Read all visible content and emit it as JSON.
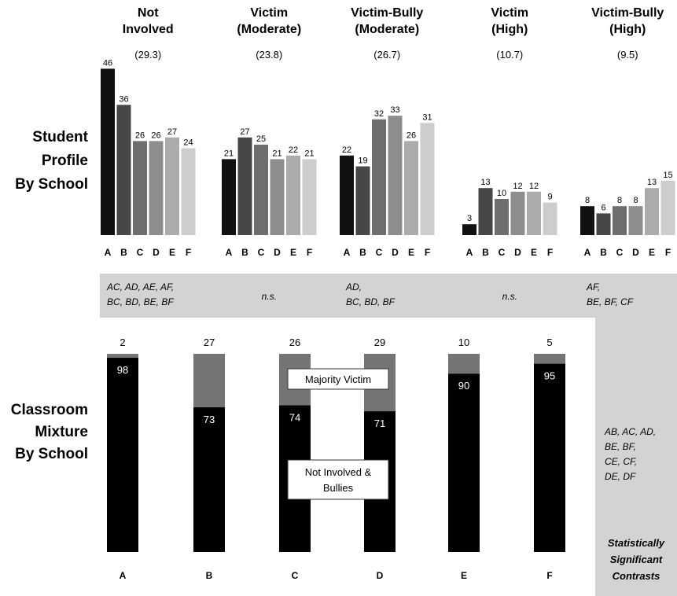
{
  "row_labels": {
    "student_profile": [
      "Student",
      "Profile",
      "By School"
    ],
    "classroom_mixture": [
      "Classroom",
      "Mixture",
      "By School"
    ]
  },
  "colors": {
    "schools": [
      "#111111",
      "#474747",
      "#6e6e6e",
      "#8d8d8d",
      "#ababab",
      "#cdcdcd"
    ],
    "panel": "#d3d3d3",
    "majority_victim": "#747474",
    "not_involved": "#000000"
  },
  "contrasts": {
    "profile": [
      [
        "AC, AD, AE, AF,",
        "BC, BD, BE, BF"
      ],
      [
        "n.s."
      ],
      [
        "AD,",
        "BC, BD, BF"
      ],
      [
        "n.s."
      ],
      [
        "AF,",
        "BE, BF, CF"
      ]
    ],
    "mixture": [
      "AB, AC, AD,",
      "BE, BF,",
      "CE, CF,",
      "DE, DF"
    ],
    "significance_title": [
      "Statistically",
      "Significant",
      "Contrasts"
    ]
  },
  "notes": {
    "majority_victim": "Majority Victim",
    "not_involved": [
      "Not Involved &",
      "Bullies"
    ]
  },
  "chart_data": [
    {
      "type": "bar",
      "categories": [
        "A",
        "B",
        "C",
        "D",
        "E",
        "F"
      ],
      "ylim": [
        0,
        46
      ],
      "groups": [
        {
          "title": [
            "Not",
            "Involved"
          ],
          "percent": "(29.3)",
          "values": [
            46,
            36,
            26,
            26,
            27,
            24
          ]
        },
        {
          "title": [
            "Victim",
            "(Moderate)"
          ],
          "percent": "(23.8)",
          "values": [
            21,
            27,
            25,
            21,
            22,
            21
          ]
        },
        {
          "title": [
            "Victim-Bully",
            "(Moderate)"
          ],
          "percent": "(26.7)",
          "values": [
            22,
            19,
            32,
            33,
            26,
            31
          ]
        },
        {
          "title": [
            "Victim",
            "(High)"
          ],
          "percent": "(10.7)",
          "values": [
            3,
            13,
            10,
            12,
            12,
            9
          ]
        },
        {
          "title": [
            "Victim-Bully",
            "(High)"
          ],
          "percent": "(9.5)",
          "values": [
            8,
            6,
            8,
            8,
            13,
            15
          ]
        }
      ]
    },
    {
      "type": "bar",
      "stacked": true,
      "categories": [
        "A",
        "B",
        "C",
        "D",
        "E",
        "F"
      ],
      "ylim": [
        0,
        100
      ],
      "series": [
        {
          "name": "Not Involved & Bullies",
          "values": [
            98,
            73,
            74,
            71,
            90,
            95
          ]
        },
        {
          "name": "Majority Victim",
          "values": [
            2,
            27,
            26,
            29,
            10,
            5
          ]
        }
      ]
    }
  ]
}
